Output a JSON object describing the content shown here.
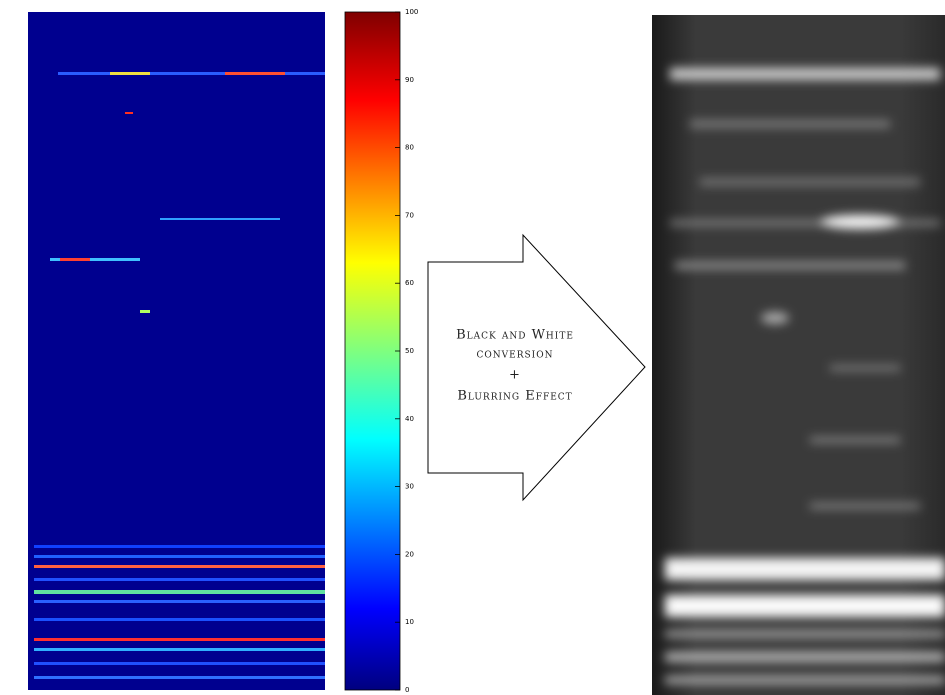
{
  "colorbar": {
    "lim": [
      0,
      100
    ],
    "ticks": [
      0,
      10,
      20,
      30,
      40,
      50,
      60,
      70,
      80,
      90,
      100
    ]
  },
  "arrow": {
    "lines": [
      "Black and White",
      "conversion",
      "+",
      "Blurring Effect"
    ]
  }
}
